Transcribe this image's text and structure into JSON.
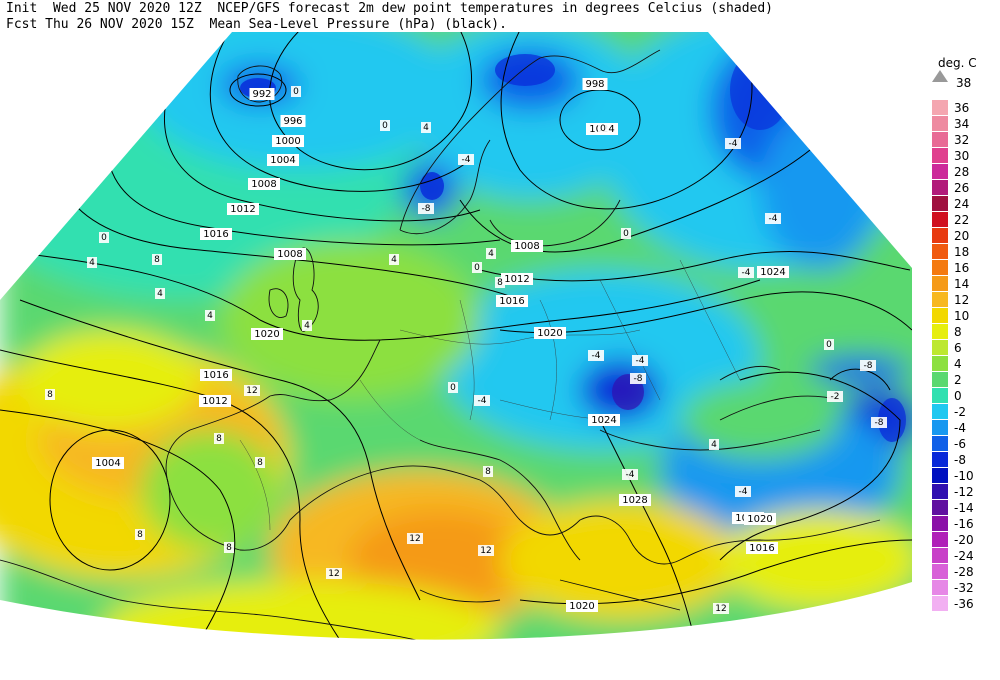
{
  "header": {
    "line1": "Init  Wed 25 NOV 2020 12Z  NCEP/GFS forecast 2m dew point temperatures in degrees Celcius (shaded)",
    "line2": "Fcst Thu 26 NOV 2020 15Z  Mean Sea-Level Pressure (hPa) (black)."
  },
  "legend": {
    "title": "deg. C",
    "top_label": "38",
    "items": [
      {
        "label": "36",
        "color": "#f4a6b0"
      },
      {
        "label": "34",
        "color": "#ee8aa0"
      },
      {
        "label": "32",
        "color": "#e86a95"
      },
      {
        "label": "30",
        "color": "#e0408e"
      },
      {
        "label": "28",
        "color": "#cc2a9a"
      },
      {
        "label": "26",
        "color": "#b21a7a"
      },
      {
        "label": "24",
        "color": "#a01040"
      },
      {
        "label": "22",
        "color": "#d01020"
      },
      {
        "label": "20",
        "color": "#e83a10"
      },
      {
        "label": "18",
        "color": "#f05a10"
      },
      {
        "label": "16",
        "color": "#f47a10"
      },
      {
        "label": "14",
        "color": "#f59a18"
      },
      {
        "label": "12",
        "color": "#f7b820"
      },
      {
        "label": "10",
        "color": "#f2d800"
      },
      {
        "label": "8",
        "color": "#e6ee10"
      },
      {
        "label": "6",
        "color": "#bde830"
      },
      {
        "label": "4",
        "color": "#8ce040"
      },
      {
        "label": "2",
        "color": "#5ad870"
      },
      {
        "label": "0",
        "color": "#30e0b0"
      },
      {
        "label": "-2",
        "color": "#20c8f0"
      },
      {
        "label": "-4",
        "color": "#1898f0"
      },
      {
        "label": "-6",
        "color": "#1060e8"
      },
      {
        "label": "-8",
        "color": "#0828d8"
      },
      {
        "label": "-10",
        "color": "#0010c0"
      },
      {
        "label": "-12",
        "color": "#3010b0"
      },
      {
        "label": "-14",
        "color": "#6010a0"
      },
      {
        "label": "-16",
        "color": "#8a10a8"
      },
      {
        "label": "-20",
        "color": "#b020b8"
      },
      {
        "label": "-24",
        "color": "#c840c8"
      },
      {
        "label": "-28",
        "color": "#d860d8"
      },
      {
        "label": "-32",
        "color": "#e688e6"
      },
      {
        "label": "-36",
        "color": "#f2b0f2"
      }
    ]
  },
  "map": {
    "pressure_labels": [
      "992",
      "996",
      "998",
      "1000",
      "1004",
      "1004",
      "1004",
      "1008",
      "1008",
      "1008",
      "1012",
      "1012",
      "1012",
      "1016",
      "1016",
      "1016",
      "1016",
      "1020",
      "1020",
      "1020",
      "1020",
      "1024",
      "1024",
      "1024",
      "1028"
    ],
    "dewpoint_labels": [
      "0",
      "4",
      "8",
      "12",
      "-4",
      "-8",
      "-2"
    ]
  }
}
